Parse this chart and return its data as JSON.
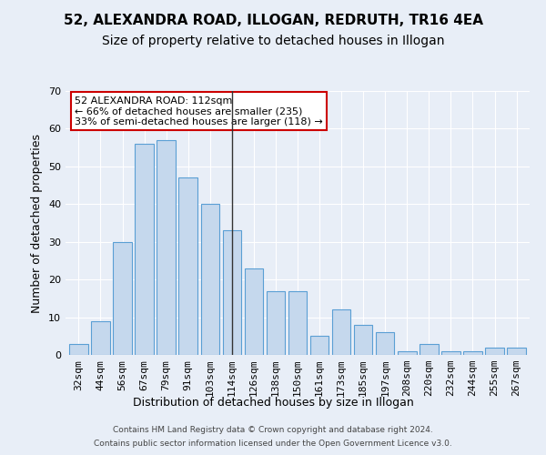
{
  "title": "52, ALEXANDRA ROAD, ILLOGAN, REDRUTH, TR16 4EA",
  "subtitle": "Size of property relative to detached houses in Illogan",
  "xlabel": "Distribution of detached houses by size in Illogan",
  "ylabel": "Number of detached properties",
  "categories": [
    "32sqm",
    "44sqm",
    "56sqm",
    "67sqm",
    "79sqm",
    "91sqm",
    "103sqm",
    "114sqm",
    "126sqm",
    "138sqm",
    "150sqm",
    "161sqm",
    "173sqm",
    "185sqm",
    "197sqm",
    "208sqm",
    "220sqm",
    "232sqm",
    "244sqm",
    "255sqm",
    "267sqm"
  ],
  "values": [
    3,
    9,
    30,
    56,
    57,
    47,
    40,
    33,
    23,
    17,
    17,
    5,
    12,
    8,
    6,
    1,
    3,
    1,
    1,
    2,
    2
  ],
  "bar_color": "#c5d8ed",
  "bar_edge_color": "#5a9fd4",
  "property_line_index": 7,
  "annotation_title": "52 ALEXANDRA ROAD: 112sqm",
  "annotation_line1": "← 66% of detached houses are smaller (235)",
  "annotation_line2": "33% of semi-detached houses are larger (118) →",
  "annotation_box_color": "#cc0000",
  "ylim": [
    0,
    70
  ],
  "yticks": [
    0,
    10,
    20,
    30,
    40,
    50,
    60,
    70
  ],
  "footer_line1": "Contains HM Land Registry data © Crown copyright and database right 2024.",
  "footer_line2": "Contains public sector information licensed under the Open Government Licence v3.0.",
  "background_color": "#e8eef7",
  "plot_background_color": "#e8eef7",
  "title_fontsize": 11,
  "subtitle_fontsize": 10,
  "ylabel_fontsize": 9,
  "xlabel_fontsize": 9,
  "tick_fontsize": 8,
  "annotation_fontsize": 8,
  "footer_fontsize": 6.5
}
